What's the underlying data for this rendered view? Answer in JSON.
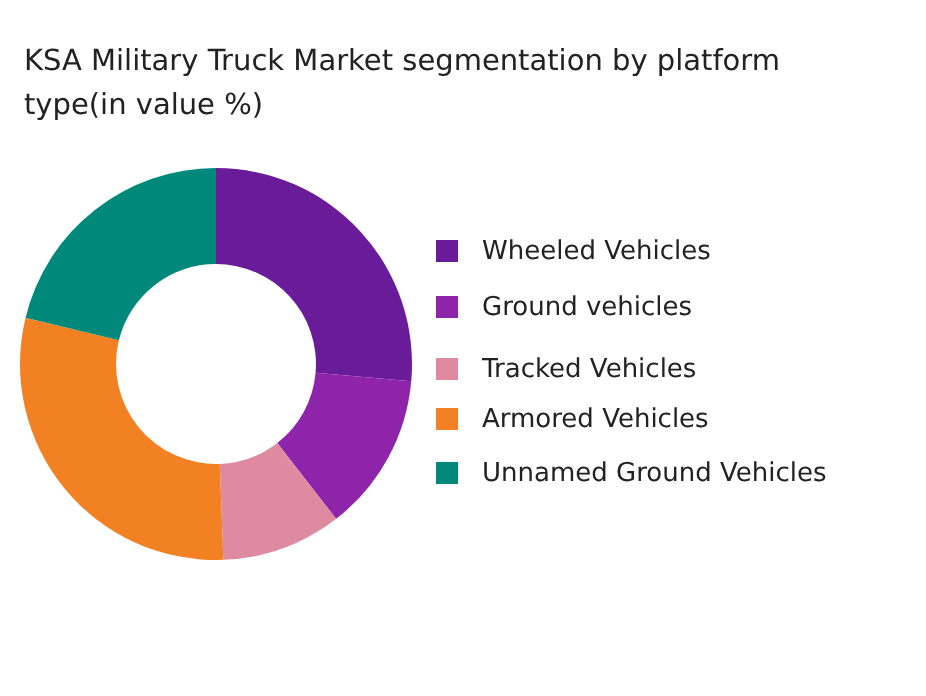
{
  "chart_data": {
    "type": "donut",
    "title": "KSA Military Truck Market segmentation by platform type(in value %)",
    "categories": [
      "Wheeled Vehicles",
      "Ground vehicles",
      "Tracked Vehicles",
      "Armored Vehicles",
      "Unnamed Ground Vehicles"
    ],
    "values": [
      26.4,
      13.1,
      9.9,
      29.4,
      21.2
    ],
    "colors": [
      "#6a1b9a",
      "#8e24aa",
      "#de8aa0",
      "#f28123",
      "#00897b"
    ],
    "legend": "right"
  }
}
